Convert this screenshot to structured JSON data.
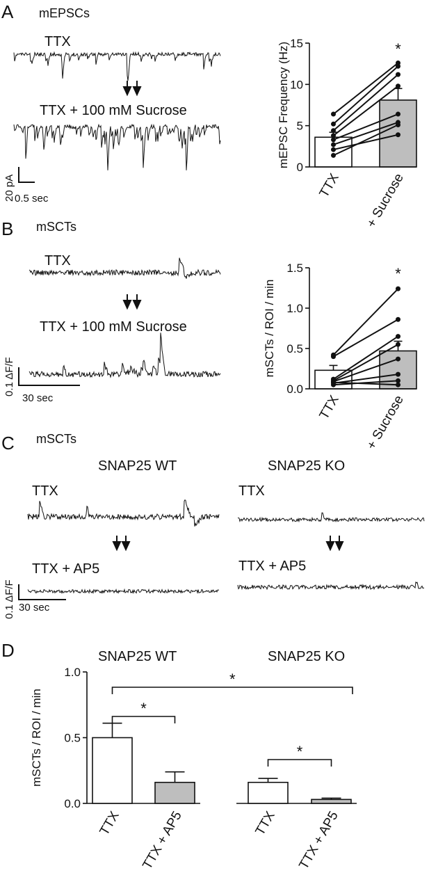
{
  "panels": {
    "A": {
      "letter": "A",
      "title": "mEPSCs",
      "trace_top_label": "TTX",
      "trace_bottom_label": "TTX + 100 mM Sucrose",
      "scale_y": "20 pA",
      "scale_x": "0.5 sec"
    },
    "B": {
      "letter": "B",
      "title": "mSCTs",
      "trace_top_label": "TTX",
      "trace_bottom_label": "TTX + 100 mM Sucrose",
      "scale_y": "0.1 ΔF/F",
      "scale_x": "30 sec"
    },
    "C": {
      "letter": "C",
      "title": "mSCTs",
      "wt_header": "SNAP25 WT",
      "ko_header": "SNAP25 KO",
      "wt_top_label": "TTX",
      "wt_bottom_label": "TTX + AP5",
      "ko_top_label": "TTX",
      "ko_bottom_label": "TTX + AP5",
      "scale_y": "0.1 ΔF/F",
      "scale_x": "30 sec"
    },
    "D": {
      "letter": "D",
      "wt_header": "SNAP25 WT",
      "ko_header": "SNAP25 KO"
    }
  },
  "chart_data": [
    {
      "id": "A",
      "type": "bar",
      "categories": [
        "TTX",
        "+ Sucrose"
      ],
      "values": [
        3.6,
        8.1
      ],
      "errors": [
        0.6,
        1.4
      ],
      "bar_colors": [
        "#ffffff",
        "#bebebe"
      ],
      "paired_points": [
        [
          1.4,
          5.1
        ],
        [
          2.1,
          3.9
        ],
        [
          2.7,
          5.4
        ],
        [
          3.3,
          6.4
        ],
        [
          3.8,
          9.8
        ],
        [
          4.4,
          11.2
        ],
        [
          5.2,
          12.2
        ],
        [
          6.4,
          12.6
        ]
      ],
      "ylabel": "mEPSC Frequency (Hz)",
      "ylim": [
        0,
        15
      ],
      "yticks": [
        "0",
        "5",
        "10",
        "15"
      ],
      "significance": "*"
    },
    {
      "id": "B",
      "type": "bar",
      "categories": [
        "TTX",
        "+ Sucrose"
      ],
      "values": [
        0.23,
        0.47
      ],
      "errors": [
        0.06,
        0.12
      ],
      "bar_colors": [
        "#ffffff",
        "#bebebe"
      ],
      "paired_points": [
        [
          0.05,
          0.1
        ],
        [
          0.07,
          0.18
        ],
        [
          0.09,
          0.37
        ],
        [
          0.1,
          0.55
        ],
        [
          0.12,
          0.65
        ],
        [
          0.4,
          0.86
        ],
        [
          0.42,
          1.24
        ],
        [
          0.08,
          0.05
        ]
      ],
      "ylabel": "mSCTs / ROI / min",
      "ylim": [
        0,
        1.5
      ],
      "yticks": [
        "0.0",
        "0.5",
        "1.0",
        "1.5"
      ],
      "significance": "*"
    },
    {
      "id": "D",
      "type": "bar",
      "categories": [
        "TTX",
        "TTX + AP5",
        "TTX",
        "TTX + AP5"
      ],
      "values": [
        0.5,
        0.16,
        0.16,
        0.03
      ],
      "errors": [
        0.11,
        0.08,
        0.03,
        0.01
      ],
      "bar_colors": [
        "#ffffff",
        "#bebebe",
        "#ffffff",
        "#bebebe"
      ],
      "ylabel": "mSCTs / ROI / min",
      "ylim": [
        0,
        1.0
      ],
      "yticks": [
        "0.0",
        "0.5",
        "1.0"
      ],
      "significance": [
        "*",
        "*",
        "*"
      ]
    }
  ]
}
